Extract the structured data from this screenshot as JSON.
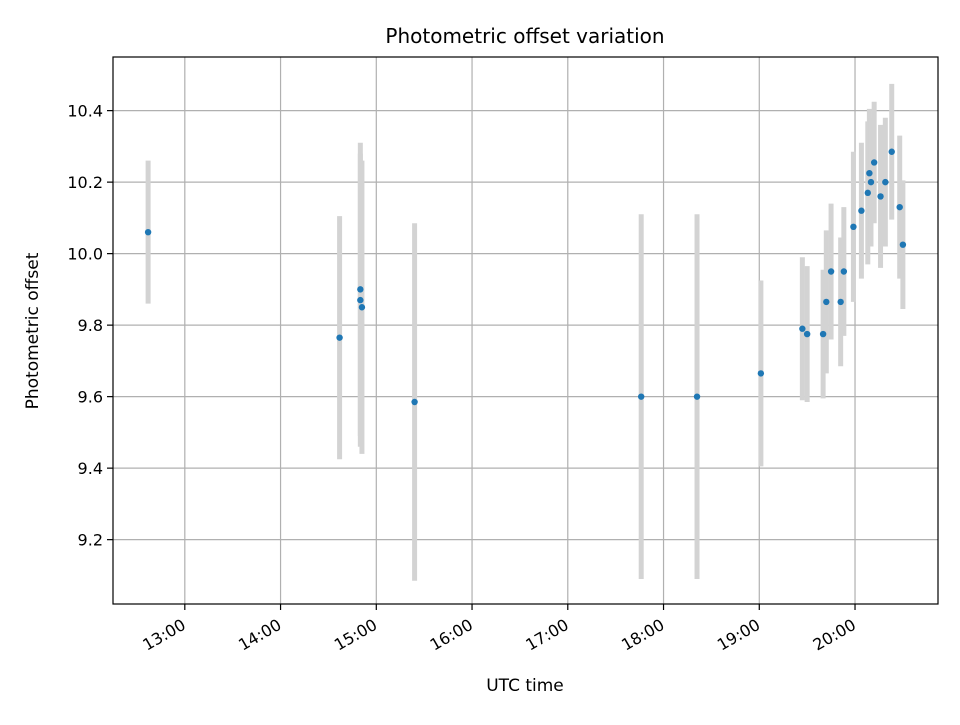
{
  "chart_data": {
    "type": "scatter",
    "title": "Photometric offset variation",
    "xlabel": "UTC time",
    "ylabel": "Photometric offset",
    "x_ticks": [
      "13:00",
      "14:00",
      "15:00",
      "16:00",
      "17:00",
      "18:00",
      "19:00",
      "20:00"
    ],
    "y_ticks": [
      "9.2",
      "9.4",
      "9.6",
      "9.8",
      "10.0",
      "10.2",
      "10.4"
    ],
    "xlim": [
      "12:15",
      "20:52"
    ],
    "ylim": [
      9.02,
      10.55
    ],
    "grid": true,
    "marker_color": "#1f77b4",
    "errorbar_color": "#d3d3d3",
    "points": [
      {
        "x": "12:37",
        "y": 10.06,
        "err": 0.2
      },
      {
        "x": "14:37",
        "y": 9.765,
        "err": 0.34
      },
      {
        "x": "14:50",
        "y": 9.9,
        "err": 0.41
      },
      {
        "x": "14:50",
        "y": 9.87,
        "err": 0.41
      },
      {
        "x": "14:51",
        "y": 9.85,
        "err": 0.41
      },
      {
        "x": "15:24",
        "y": 9.585,
        "err": 0.5
      },
      {
        "x": "17:46",
        "y": 9.6,
        "err": 0.51
      },
      {
        "x": "18:21",
        "y": 9.6,
        "err": 0.51
      },
      {
        "x": "19:01",
        "y": 9.665,
        "err": 0.26
      },
      {
        "x": "19:27",
        "y": 9.79,
        "err": 0.2
      },
      {
        "x": "19:30",
        "y": 9.775,
        "err": 0.19
      },
      {
        "x": "19:40",
        "y": 9.775,
        "err": 0.18
      },
      {
        "x": "19:42",
        "y": 9.865,
        "err": 0.2
      },
      {
        "x": "19:45",
        "y": 9.95,
        "err": 0.19
      },
      {
        "x": "19:51",
        "y": 9.865,
        "err": 0.18
      },
      {
        "x": "19:53",
        "y": 9.95,
        "err": 0.18
      },
      {
        "x": "19:59",
        "y": 10.075,
        "err": 0.21
      },
      {
        "x": "20:04",
        "y": 10.12,
        "err": 0.19
      },
      {
        "x": "20:08",
        "y": 10.17,
        "err": 0.2
      },
      {
        "x": "20:09",
        "y": 10.225,
        "err": 0.18
      },
      {
        "x": "20:10",
        "y": 10.2,
        "err": 0.18
      },
      {
        "x": "20:12",
        "y": 10.255,
        "err": 0.17
      },
      {
        "x": "20:16",
        "y": 10.16,
        "err": 0.2
      },
      {
        "x": "20:19",
        "y": 10.2,
        "err": 0.18
      },
      {
        "x": "20:23",
        "y": 10.285,
        "err": 0.19
      },
      {
        "x": "20:28",
        "y": 10.13,
        "err": 0.2
      },
      {
        "x": "20:30",
        "y": 10.025,
        "err": 0.18
      }
    ]
  }
}
